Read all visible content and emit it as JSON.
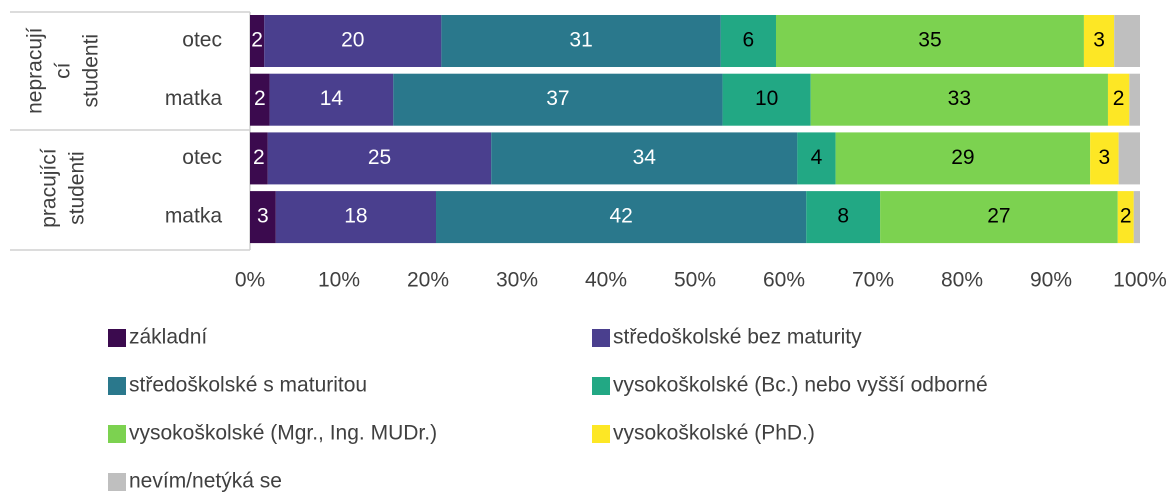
{
  "chart_data": {
    "type": "stacked-bar-horizontal",
    "categories": [
      "otec",
      "matka",
      "otec",
      "matka"
    ],
    "groups": [
      {
        "lines": [
          "nepracují",
          "cí",
          "studenti"
        ]
      },
      {
        "lines": [
          "pracující",
          "studenti"
        ]
      }
    ],
    "series": [
      {
        "name": "základní",
        "color": "#3b0a4e",
        "label_color": "#ffffff",
        "values": [
          1.6,
          2.2,
          2.0,
          2.9
        ],
        "value_labels": [
          "2",
          "2",
          "2",
          "3"
        ]
      },
      {
        "name": "středoškolské bez maturity",
        "color": "#4a3f8e",
        "label_color": "#ffffff",
        "values": [
          19.9,
          13.9,
          25.1,
          18.0
        ],
        "value_labels": [
          "20",
          "14",
          "25",
          "18"
        ]
      },
      {
        "name": "středoškolské s maturitou",
        "color": "#2a788c",
        "label_color": "#ffffff",
        "values": [
          31.4,
          37.0,
          34.4,
          41.6
        ],
        "value_labels": [
          "31",
          "37",
          "34",
          "42"
        ]
      },
      {
        "name": "vysokoškolské (Bc.) nebo vyšší odborné",
        "color": "#22a884",
        "label_color": "#000000",
        "values": [
          6.2,
          9.9,
          4.3,
          8.3
        ],
        "value_labels": [
          "6",
          "10",
          "4",
          "8"
        ]
      },
      {
        "name": "vysokoškolské (Mgr., Ing. MUDr.)",
        "color": "#7cd250",
        "label_color": "#000000",
        "values": [
          34.6,
          33.4,
          28.6,
          26.7
        ],
        "value_labels": [
          "35",
          "33",
          "29",
          "27"
        ]
      },
      {
        "name": "vysokoškolské (PhD.)",
        "color": "#fde725",
        "label_color": "#000000",
        "values": [
          3.4,
          2.4,
          3.2,
          1.8
        ],
        "value_labels": [
          "3",
          "2",
          "3",
          "2"
        ]
      },
      {
        "name": "nevím/netýká se",
        "color": "#bfbfbf",
        "label_color": "#000000",
        "values": [
          2.9,
          1.2,
          2.4,
          0.7
        ],
        "value_labels": [
          null,
          null,
          null,
          null
        ]
      }
    ],
    "xlim": [
      0,
      100
    ],
    "xticks": [
      {
        "value": 0,
        "label": "0%"
      },
      {
        "value": 10,
        "label": "10%"
      },
      {
        "value": 20,
        "label": "20%"
      },
      {
        "value": 30,
        "label": "30%"
      },
      {
        "value": 40,
        "label": "40%"
      },
      {
        "value": 50,
        "label": "50%"
      },
      {
        "value": 60,
        "label": "60%"
      },
      {
        "value": 70,
        "label": "70%"
      },
      {
        "value": 80,
        "label": "80%"
      },
      {
        "value": 90,
        "label": "90%"
      },
      {
        "value": 100,
        "label": "100%"
      }
    ]
  }
}
